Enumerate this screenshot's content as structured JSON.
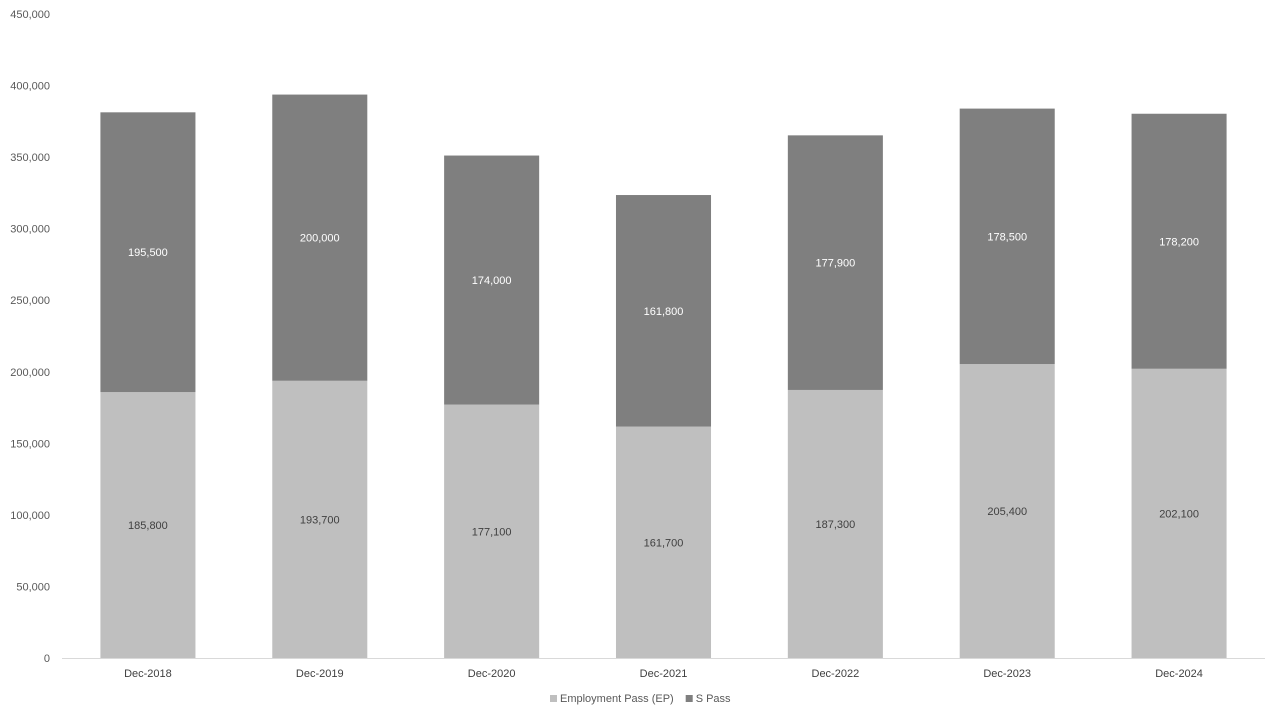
{
  "chart_data": {
    "type": "bar",
    "stacked": true,
    "title": "",
    "xlabel": "",
    "ylabel": "",
    "categories": [
      "Dec-2018",
      "Dec-2019",
      "Dec-2020",
      "Dec-2021",
      "Dec-2022",
      "Dec-2023",
      "Dec-2024"
    ],
    "series": [
      {
        "name": "Employment Pass (EP)",
        "color": "#bfbfbf",
        "label_color": "#404040",
        "values": [
          185800,
          193700,
          177100,
          161700,
          187300,
          205400,
          202100
        ],
        "labels": [
          "185,800",
          "193,700",
          "177,100",
          "161,700",
          "187,300",
          "205,400",
          "202,100"
        ]
      },
      {
        "name": "S Pass",
        "color": "#7f7f7f",
        "label_color": "#ffffff",
        "values": [
          195500,
          200000,
          174000,
          161800,
          177900,
          178500,
          178200
        ],
        "labels": [
          "195,500",
          "200,000",
          "174,000",
          "161,800",
          "177,900",
          "178,500",
          "178,200"
        ]
      }
    ],
    "ylim": [
      0,
      450000
    ],
    "yticks": [
      0,
      50000,
      100000,
      150000,
      200000,
      250000,
      300000,
      350000,
      400000,
      450000
    ],
    "ytick_labels": [
      "0",
      "50,000",
      "100,000",
      "150,000",
      "200,000",
      "250,000",
      "300,000",
      "350,000",
      "400,000",
      "450,000"
    ],
    "grid": false,
    "legend_position": "bottom"
  }
}
